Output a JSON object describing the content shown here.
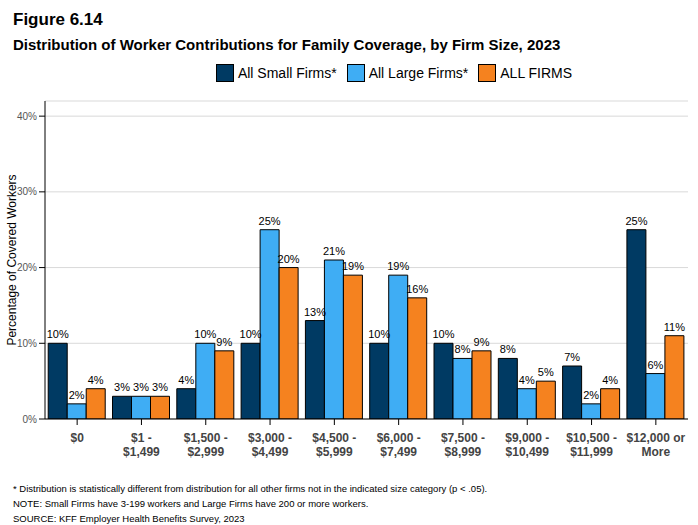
{
  "chart_data": {
    "type": "bar",
    "title": "Figure 6.14",
    "subtitle": "Distribution of Worker Contributions for Family Coverage, by Firm Size, 2023",
    "y_label": "Percentage of Covered Workers",
    "categories": [
      "$0",
      "$1 - $1,499",
      "$1,500 - $2,999",
      "$3,000 - $4,499",
      "$4,500 - $5,999",
      "$6,000 - $7,499",
      "$7,500 - $8,999",
      "$9,000 - $10,499",
      "$10,500 - $11,999",
      "$12,000 or More"
    ],
    "series": [
      {
        "name": "All Small Firms*",
        "color": "#003a63",
        "values": [
          10,
          3,
          4,
          10,
          13,
          10,
          10,
          8,
          7,
          25
        ],
        "value_labels": [
          "10%",
          "3%",
          "4%",
          "10%",
          "13%",
          "10%",
          "10%",
          "8%",
          "7%",
          "25%"
        ]
      },
      {
        "name": "All Large Firms*",
        "color": "#3fadf4",
        "values": [
          2,
          3,
          10,
          25,
          21,
          19,
          8,
          4,
          2,
          6
        ],
        "value_labels": [
          "2%",
          "3%",
          "10%",
          "25%",
          "21%",
          "19%",
          "8%",
          "4%",
          "2%",
          "6%"
        ]
      },
      {
        "name": "ALL FIRMS",
        "color": "#f5821f",
        "values": [
          4,
          3,
          9,
          20,
          19,
          16,
          9,
          5,
          4,
          11
        ],
        "value_labels": [
          "4%",
          "3%",
          "9%",
          "20%",
          "19%",
          "16%",
          "9%",
          "5%",
          "4%",
          "11%"
        ]
      }
    ],
    "ylim": [
      0,
      42
    ],
    "yticks": [
      {
        "value": 0,
        "label": "0%"
      },
      {
        "value": 10,
        "label": "10%"
      },
      {
        "value": 20,
        "label": "20%"
      },
      {
        "value": 30,
        "label": "30%"
      },
      {
        "value": 40,
        "label": "40%"
      }
    ],
    "grid": true,
    "legend": "top",
    "data_labels": true,
    "annotations": [
      "* Distribution is statistically different from distribution for all other firms not in the indicated size category (p < .05).",
      "NOTE: Small Firms have 3-199 workers and Large Firms have 200 or more workers.",
      "SOURCE: KFF Employer Health Benefits Survey, 2023"
    ]
  }
}
